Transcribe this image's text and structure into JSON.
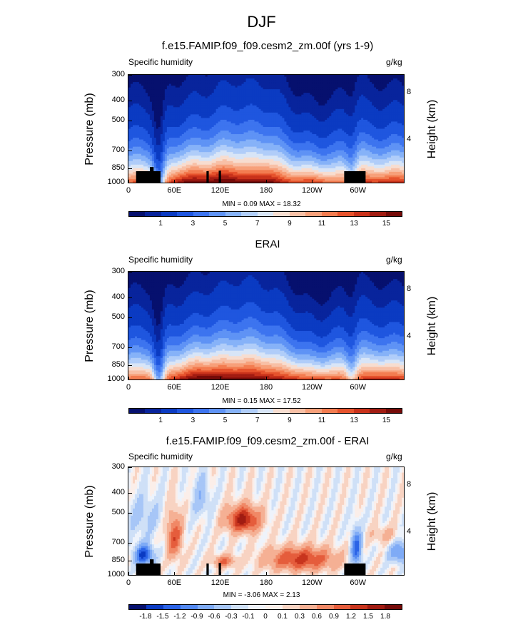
{
  "figure": {
    "title": "DJF",
    "panels": [
      {
        "title": "f.e15.FAMIP.f09_f09.cesm2_zm.00f (yrs 1-9)",
        "left_label": "Specific humidity",
        "right_label": "g/kg",
        "minmax": "MIN =  0.09  MAX =  18.32"
      },
      {
        "title": "ERAI",
        "left_label": "Specific humidity",
        "right_label": "g/kg",
        "minmax": "MIN =  0.15  MAX =  17.52"
      },
      {
        "title": "f.e15.FAMIP.f09_f09.cesm2_zm.00f - ERAI",
        "left_label": "Specific humidity",
        "right_label": "g/kg",
        "minmax": "MIN = -3.06  MAX =  2.13"
      }
    ],
    "ylabel": "Pressure (mb)",
    "ylabel_right": "Height (km)"
  },
  "chart_data": [
    {
      "type": "heatmap",
      "title": "f.e15.FAMIP.f09_f09.cesm2_zm.00f (yrs 1-9)",
      "xlabel": "",
      "ylabel": "Pressure (mb)",
      "y2label": "Height (km)",
      "x_ticks": [
        "0",
        "60E",
        "120E",
        "180",
        "120W",
        "60W"
      ],
      "x_tick_values": [
        0,
        60,
        120,
        180,
        240,
        300
      ],
      "xlim": [
        0,
        360
      ],
      "y_ticks": [
        "300",
        "400",
        "500",
        "700",
        "850",
        "1000"
      ],
      "y_tick_values": [
        300,
        400,
        500,
        700,
        850,
        1000
      ],
      "ylim": [
        1000,
        300
      ],
      "y2_ticks": [
        "8",
        "4"
      ],
      "units": "g/kg",
      "min": 0.09,
      "max": 18.32,
      "colorbar_labels": [
        "1",
        "3",
        "5",
        "7",
        "9",
        "11",
        "13",
        "15"
      ],
      "colorbar_levels": [
        0.5,
        1,
        2,
        3,
        4,
        5,
        6,
        7,
        8,
        9,
        10,
        11,
        12,
        13,
        14,
        15,
        16
      ],
      "mode": "humidity",
      "surface_height_mb": [
        995,
        1003,
        1000,
        1000,
        1000,
        1002,
        1000,
        1002,
        1000,
        995
      ],
      "topography_blocks": [
        {
          "lon": [
            10,
            42
          ],
          "p": [
            880,
            1000
          ]
        },
        {
          "lon": [
            28,
            33
          ],
          "p": [
            840,
            880
          ]
        },
        {
          "lon": [
            102,
            105
          ],
          "p": [
            880,
            1000
          ]
        },
        {
          "lon": [
            118,
            121
          ],
          "p": [
            875,
            1000
          ]
        },
        {
          "lon": [
            282,
            310
          ],
          "p": [
            880,
            1000
          ]
        }
      ],
      "surface_q_profile": "tropics-moist"
    },
    {
      "type": "heatmap",
      "title": "ERAI",
      "xlabel": "",
      "ylabel": "Pressure (mb)",
      "y2label": "Height (km)",
      "x_ticks": [
        "0",
        "60E",
        "120E",
        "180",
        "120W",
        "60W"
      ],
      "x_tick_values": [
        0,
        60,
        120,
        180,
        240,
        300
      ],
      "xlim": [
        0,
        360
      ],
      "y_ticks": [
        "300",
        "400",
        "500",
        "700",
        "850",
        "1000"
      ],
      "y_tick_values": [
        300,
        400,
        500,
        700,
        850,
        1000
      ],
      "ylim": [
        1000,
        300
      ],
      "y2_ticks": [
        "8",
        "4"
      ],
      "units": "g/kg",
      "min": 0.15,
      "max": 17.52,
      "colorbar_labels": [
        "1",
        "3",
        "5",
        "7",
        "9",
        "11",
        "13",
        "15"
      ],
      "colorbar_levels": [
        0.5,
        1,
        2,
        3,
        4,
        5,
        6,
        7,
        8,
        9,
        10,
        11,
        12,
        13,
        14,
        15,
        16
      ],
      "mode": "humidity",
      "topography_blocks": []
    },
    {
      "type": "heatmap",
      "title": "f.e15.FAMIP.f09_f09.cesm2_zm.00f - ERAI",
      "xlabel": "",
      "ylabel": "Pressure (mb)",
      "y2label": "Height (km)",
      "x_ticks": [
        "0",
        "60E",
        "120E",
        "180",
        "120W",
        "60W"
      ],
      "x_tick_values": [
        0,
        60,
        120,
        180,
        240,
        300
      ],
      "xlim": [
        0,
        360
      ],
      "y_ticks": [
        "300",
        "400",
        "500",
        "700",
        "850",
        "1000"
      ],
      "y_tick_values": [
        300,
        400,
        500,
        700,
        850,
        1000
      ],
      "ylim": [
        1000,
        300
      ],
      "y2_ticks": [
        "8",
        "4"
      ],
      "units": "g/kg",
      "min": -3.06,
      "max": 2.13,
      "colorbar_labels": [
        "-1.8",
        "-1.5",
        "-1.2",
        "-0.9",
        "-0.6",
        "-0.3",
        "-0.1",
        "0",
        "0.1",
        "0.3",
        "0.6",
        "0.9",
        "1.2",
        "1.5",
        "1.8"
      ],
      "colorbar_levels": [
        -1.8,
        -1.5,
        -1.2,
        -0.9,
        -0.6,
        -0.3,
        -0.1,
        0,
        0.1,
        0.3,
        0.6,
        0.9,
        1.2,
        1.5,
        1.8
      ],
      "mode": "diff",
      "topography_blocks": [
        {
          "lon": [
            10,
            42
          ],
          "p": [
            880,
            1000
          ]
        },
        {
          "lon": [
            28,
            33
          ],
          "p": [
            840,
            880
          ]
        },
        {
          "lon": [
            102,
            105
          ],
          "p": [
            880,
            1000
          ]
        },
        {
          "lon": [
            118,
            121
          ],
          "p": [
            875,
            1000
          ]
        },
        {
          "lon": [
            282,
            310
          ],
          "p": [
            880,
            1000
          ]
        }
      ]
    }
  ],
  "colors": {
    "humidity_palette": [
      "#06106e",
      "#08249c",
      "#0b3bc2",
      "#1f56df",
      "#3d74ef",
      "#5f93f5",
      "#86b2f8",
      "#b0cdf9",
      "#d8e5f7",
      "#f7ddd0",
      "#f8c0a6",
      "#f7a07a",
      "#f37c50",
      "#e6532d",
      "#c9321b",
      "#a11c12",
      "#760b09"
    ],
    "diff_palette": [
      "#06106e",
      "#0b3bc2",
      "#2b63e6",
      "#5389f2",
      "#7fabf6",
      "#a7c6f7",
      "#cfe0f7",
      "#eef3fb",
      "#fbeee9",
      "#f8d3c2",
      "#f5b094",
      "#f08866",
      "#e55d3c",
      "#c8351e",
      "#a11c12",
      "#760b09"
    ],
    "topography": "#000000"
  }
}
